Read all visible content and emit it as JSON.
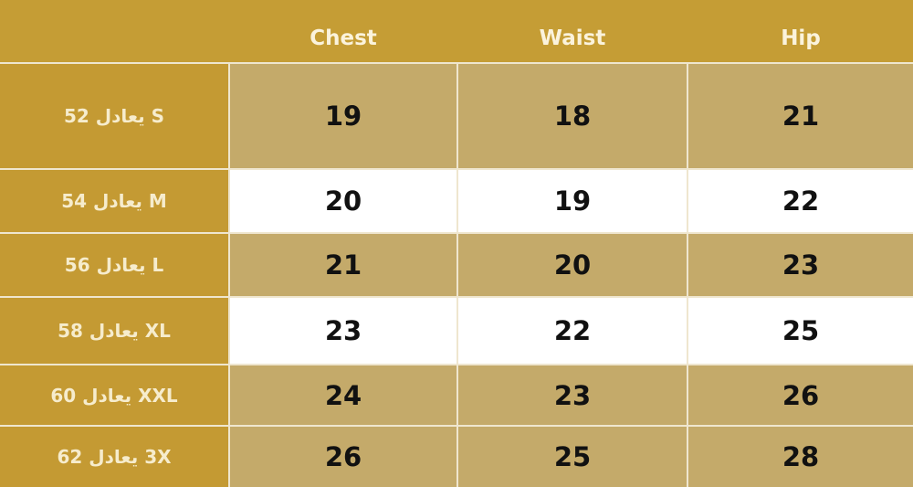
{
  "headers": [
    "Chest",
    "Waist",
    "Hip"
  ],
  "rows": [
    {
      "label": "S يعادل 52",
      "values": [
        "19",
        "18",
        "21"
      ],
      "shade": "tan"
    },
    {
      "label": "M يعادل 54",
      "values": [
        "20",
        "19",
        "22"
      ],
      "shade": "white"
    },
    {
      "label": "L يعادل 56",
      "values": [
        "21",
        "20",
        "23"
      ],
      "shade": "tan"
    },
    {
      "label": "XL يعادل 58",
      "values": [
        "23",
        "22",
        "25"
      ],
      "shade": "white"
    },
    {
      "label": "XXL يعادل 60",
      "values": [
        "24",
        "23",
        "26"
      ],
      "shade": "tan"
    },
    {
      "label": "3X يعادل 62",
      "values": [
        "26",
        "25",
        "28"
      ],
      "shade": "tan"
    }
  ],
  "colors": {
    "header": "#c59d35",
    "label_column": "#c49a33",
    "tan_cell": "#c4aa6a",
    "white_cell": "#ffffff",
    "label_text": "#f6eccd"
  }
}
